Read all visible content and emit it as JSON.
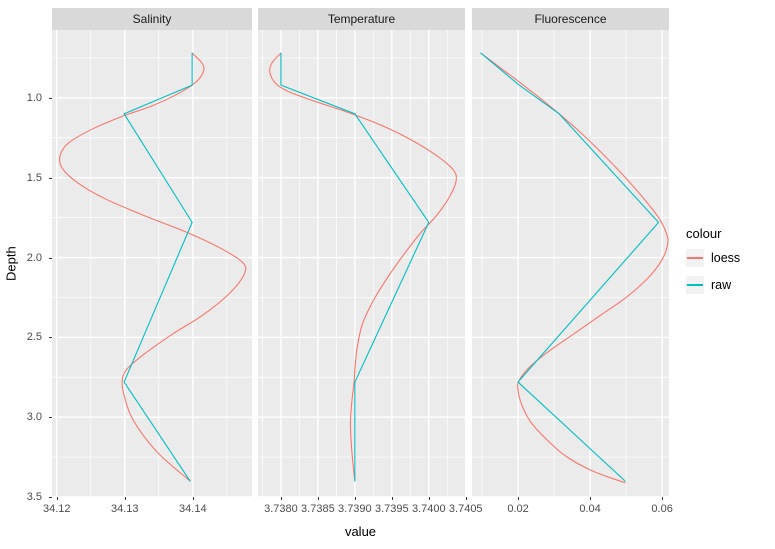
{
  "figure": {
    "background": "#FFFFFF",
    "panel_background": "#EBEBEB",
    "strip_background": "#D9D9D9",
    "grid_color": "#FFFFFF",
    "axis_text_color": "#4D4D4D",
    "strip_text_color": "#1A1A1A",
    "tick_color": "#333333"
  },
  "axes": {
    "x_title": "value",
    "y_title": "Depth"
  },
  "legend": {
    "title": "colour",
    "items": [
      {
        "label": "loess",
        "color": "#F8766D"
      },
      {
        "label": "raw",
        "color": "#00BFC4"
      }
    ]
  },
  "chart_data": {
    "type": "line",
    "faceted": true,
    "xlabel": "value",
    "ylabel": "Depth",
    "legend_position": "right",
    "grid": true,
    "y_axis": {
      "reversed": true,
      "domain": [
        0.575,
        3.5
      ],
      "major_ticks": [
        1.0,
        1.5,
        2.0,
        2.5,
        3.0,
        3.5
      ],
      "minor_ticks": [
        0.75,
        1.25,
        1.75,
        2.25,
        2.75,
        3.25
      ],
      "tick_labels": [
        "1.0",
        "1.5",
        "2.0",
        "2.5",
        "3.0",
        "3.5"
      ]
    },
    "series_colors": {
      "loess": "#F8766D",
      "raw": "#00BFC4"
    },
    "panels": [
      {
        "title": "Salinity",
        "x_domain": [
          34.1193,
          34.1487
        ],
        "x_major": [
          34.12,
          34.13,
          34.14
        ],
        "x_minor": [
          34.125,
          34.135,
          34.145
        ],
        "x_tick_labels": [
          "34.12",
          "34.13",
          "34.14"
        ],
        "raw_points": [
          [
            34.1399,
            0.72
          ],
          [
            34.1399,
            0.92
          ],
          [
            34.1299,
            1.1
          ],
          [
            34.1399,
            1.78
          ],
          [
            34.1299,
            2.78
          ],
          [
            34.1396,
            3.4
          ]
        ],
        "loess_points": [
          [
            34.1399,
            0.72
          ],
          [
            34.1413,
            0.78
          ],
          [
            34.1416,
            0.83
          ],
          [
            34.1405,
            0.9
          ],
          [
            34.138,
            0.97
          ],
          [
            34.134,
            1.05
          ],
          [
            34.13,
            1.11
          ],
          [
            34.1255,
            1.19
          ],
          [
            34.1218,
            1.28
          ],
          [
            34.1205,
            1.36
          ],
          [
            34.1208,
            1.44
          ],
          [
            34.123,
            1.53
          ],
          [
            34.127,
            1.63
          ],
          [
            34.133,
            1.74
          ],
          [
            34.139,
            1.84
          ],
          [
            34.144,
            1.94
          ],
          [
            34.1473,
            2.03
          ],
          [
            34.1476,
            2.1
          ],
          [
            34.1455,
            2.22
          ],
          [
            34.1415,
            2.36
          ],
          [
            34.137,
            2.48
          ],
          [
            34.133,
            2.6
          ],
          [
            34.1303,
            2.7
          ],
          [
            34.1296,
            2.78
          ],
          [
            34.13,
            2.88
          ],
          [
            34.131,
            3.0
          ],
          [
            34.133,
            3.13
          ],
          [
            34.1355,
            3.25
          ],
          [
            34.1396,
            3.4
          ]
        ]
      },
      {
        "title": "Temperature",
        "x_domain": [
          3.73769,
          3.74049
        ],
        "x_major": [
          3.738,
          3.7385,
          3.739,
          3.7395,
          3.74,
          3.7405
        ],
        "x_minor": [
          3.73775,
          3.73825,
          3.73875,
          3.73925,
          3.73975,
          3.74025
        ],
        "x_tick_labels": [
          "3.7380",
          "3.7385",
          "3.7390",
          "3.7395",
          "3.7400",
          "3.7405"
        ],
        "raw_points": [
          [
            3.738,
            0.72
          ],
          [
            3.738,
            0.92
          ],
          [
            3.739,
            1.1
          ],
          [
            3.74,
            1.78
          ],
          [
            3.739,
            2.78
          ],
          [
            3.739,
            3.4
          ]
        ],
        "loess_points": [
          [
            3.738,
            0.72
          ],
          [
            3.73788,
            0.78
          ],
          [
            3.73785,
            0.84
          ],
          [
            3.73793,
            0.91
          ],
          [
            3.7381,
            0.96
          ],
          [
            3.73845,
            1.02
          ],
          [
            3.7389,
            1.09
          ],
          [
            3.73935,
            1.17
          ],
          [
            3.73975,
            1.26
          ],
          [
            3.7401,
            1.36
          ],
          [
            3.74033,
            1.45
          ],
          [
            3.74037,
            1.52
          ],
          [
            3.74028,
            1.62
          ],
          [
            3.7401,
            1.74
          ],
          [
            3.7399,
            1.84
          ],
          [
            3.73968,
            1.97
          ],
          [
            3.73945,
            2.12
          ],
          [
            3.73925,
            2.27
          ],
          [
            3.7391,
            2.42
          ],
          [
            3.73903,
            2.57
          ],
          [
            3.739,
            2.7
          ],
          [
            3.73899,
            2.78
          ],
          [
            3.73896,
            2.9
          ],
          [
            3.73894,
            3.03
          ],
          [
            3.73895,
            3.15
          ],
          [
            3.73897,
            3.27
          ],
          [
            3.739,
            3.4
          ]
        ]
      },
      {
        "title": "Fluorescence",
        "x_domain": [
          0.00722,
          0.0619
        ],
        "x_major": [
          0.02,
          0.04,
          0.06
        ],
        "x_minor": [
          0.01,
          0.03,
          0.05
        ],
        "x_tick_labels": [
          "0.02",
          "0.04",
          "0.06"
        ],
        "raw_points": [
          [
            0.0097,
            0.72
          ],
          [
            0.0203,
            0.92
          ],
          [
            0.0314,
            1.1
          ],
          [
            0.059,
            1.78
          ],
          [
            0.02,
            2.78
          ],
          [
            0.0497,
            3.4
          ]
        ],
        "loess_points": [
          [
            0.0097,
            0.72
          ],
          [
            0.015,
            0.81
          ],
          [
            0.0203,
            0.9
          ],
          [
            0.026,
            1.0
          ],
          [
            0.0314,
            1.1
          ],
          [
            0.037,
            1.21
          ],
          [
            0.043,
            1.34
          ],
          [
            0.049,
            1.48
          ],
          [
            0.0545,
            1.62
          ],
          [
            0.059,
            1.75
          ],
          [
            0.0612,
            1.85
          ],
          [
            0.0615,
            1.92
          ],
          [
            0.0598,
            2.02
          ],
          [
            0.056,
            2.13
          ],
          [
            0.05,
            2.25
          ],
          [
            0.043,
            2.36
          ],
          [
            0.036,
            2.47
          ],
          [
            0.029,
            2.58
          ],
          [
            0.0235,
            2.68
          ],
          [
            0.0203,
            2.77
          ],
          [
            0.02,
            2.83
          ],
          [
            0.021,
            2.92
          ],
          [
            0.0235,
            3.03
          ],
          [
            0.0275,
            3.13
          ],
          [
            0.033,
            3.24
          ],
          [
            0.04,
            3.33
          ],
          [
            0.047,
            3.39
          ],
          [
            0.0497,
            3.41
          ]
        ]
      }
    ]
  }
}
